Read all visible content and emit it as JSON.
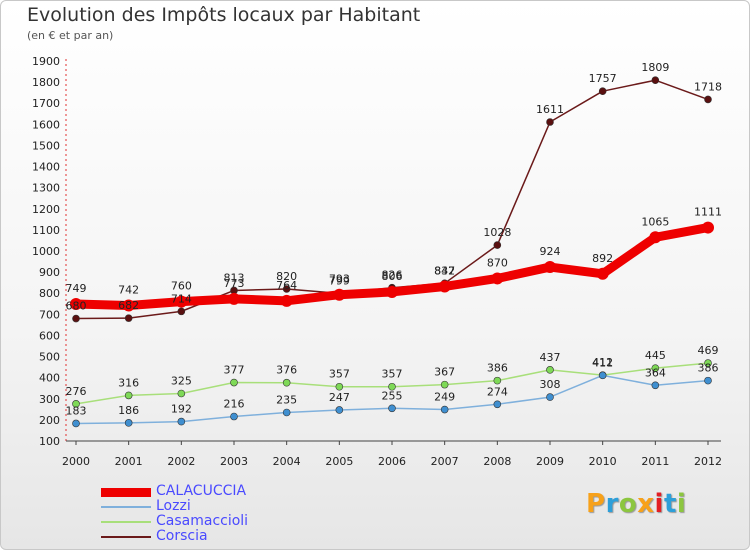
{
  "title": "Evolution des Impôts locaux par Habitant",
  "subtitle": "(en € et par an)",
  "logo": {
    "text": "Proxiti",
    "letter_colors": [
      "#f7a11a",
      "#2d9fd9",
      "#8cc63f",
      "#f7a11a",
      "#e31e24",
      "#2d9fd9",
      "#8cc63f"
    ]
  },
  "chart_data": {
    "type": "line",
    "title": "Evolution des Impôts locaux par Habitant",
    "subtitle": "(en € et par an)",
    "xlabel": "",
    "ylabel": "",
    "ylim": [
      100,
      1900
    ],
    "yticks": [
      100,
      200,
      300,
      400,
      500,
      600,
      700,
      800,
      900,
      1000,
      1100,
      1200,
      1300,
      1400,
      1500,
      1600,
      1700,
      1800,
      1900
    ],
    "grid": false,
    "legend_position": "bottom-left",
    "categories": [
      "2000",
      "2001",
      "2002",
      "2003",
      "2004",
      "2005",
      "2006",
      "2007",
      "2008",
      "2009",
      "2010",
      "2011",
      "2012"
    ],
    "series": [
      {
        "name": "Corscia",
        "color": "#6b1a1a",
        "dot_color": "#5a1010",
        "values": [
          680,
          682,
          714,
          813,
          820,
          799,
          826,
          847,
          1028,
          1611,
          1757,
          1809,
          1718
        ],
        "labels": [
          "680",
          "682",
          "714",
          "813",
          "820",
          "799",
          "826",
          "847",
          "1028",
          "1611",
          "1757",
          "1809",
          "1718"
        ]
      },
      {
        "name": "Casamaccioli",
        "color": "#a8df7a",
        "dot_color": "#7ed957",
        "values": [
          276,
          316,
          325,
          377,
          376,
          357,
          357,
          367,
          386,
          437,
          412,
          445,
          469
        ],
        "labels": [
          "276",
          "316",
          "325",
          "377",
          "376",
          "357",
          "357",
          "367",
          "386",
          "437",
          "412",
          "445",
          "469"
        ]
      },
      {
        "name": "Lozzi",
        "color": "#7fb0dc",
        "dot_color": "#3f8fd0",
        "values": [
          183,
          186,
          192,
          216,
          235,
          247,
          255,
          249,
          274,
          308,
          411,
          364,
          386
        ],
        "labels": [
          "183",
          "186",
          "192",
          "216",
          "235",
          "247",
          "255",
          "249",
          "274",
          "308",
          "411",
          "364",
          "386"
        ]
      },
      {
        "name": "CALACUCCIA",
        "color": "#ee0000",
        "dot_color": "#ee0000",
        "values": [
          749,
          742,
          760,
          773,
          764,
          793,
          806,
          832,
          870,
          924,
          892,
          1065,
          1111
        ],
        "labels": [
          "749",
          "742",
          "760",
          "773",
          "764",
          "793",
          "806",
          "832",
          "870",
          "924",
          "892",
          "1065",
          "1111"
        ]
      }
    ]
  },
  "legend": [
    {
      "name": "CALACUCCIA",
      "color": "#ee0000",
      "thickness": 9
    },
    {
      "name": "Lozzi",
      "color": "#7fb0dc",
      "thickness": 2
    },
    {
      "name": "Casamaccioli",
      "color": "#a8df7a",
      "thickness": 2
    },
    {
      "name": "Corscia",
      "color": "#6b1a1a",
      "thickness": 2
    }
  ]
}
